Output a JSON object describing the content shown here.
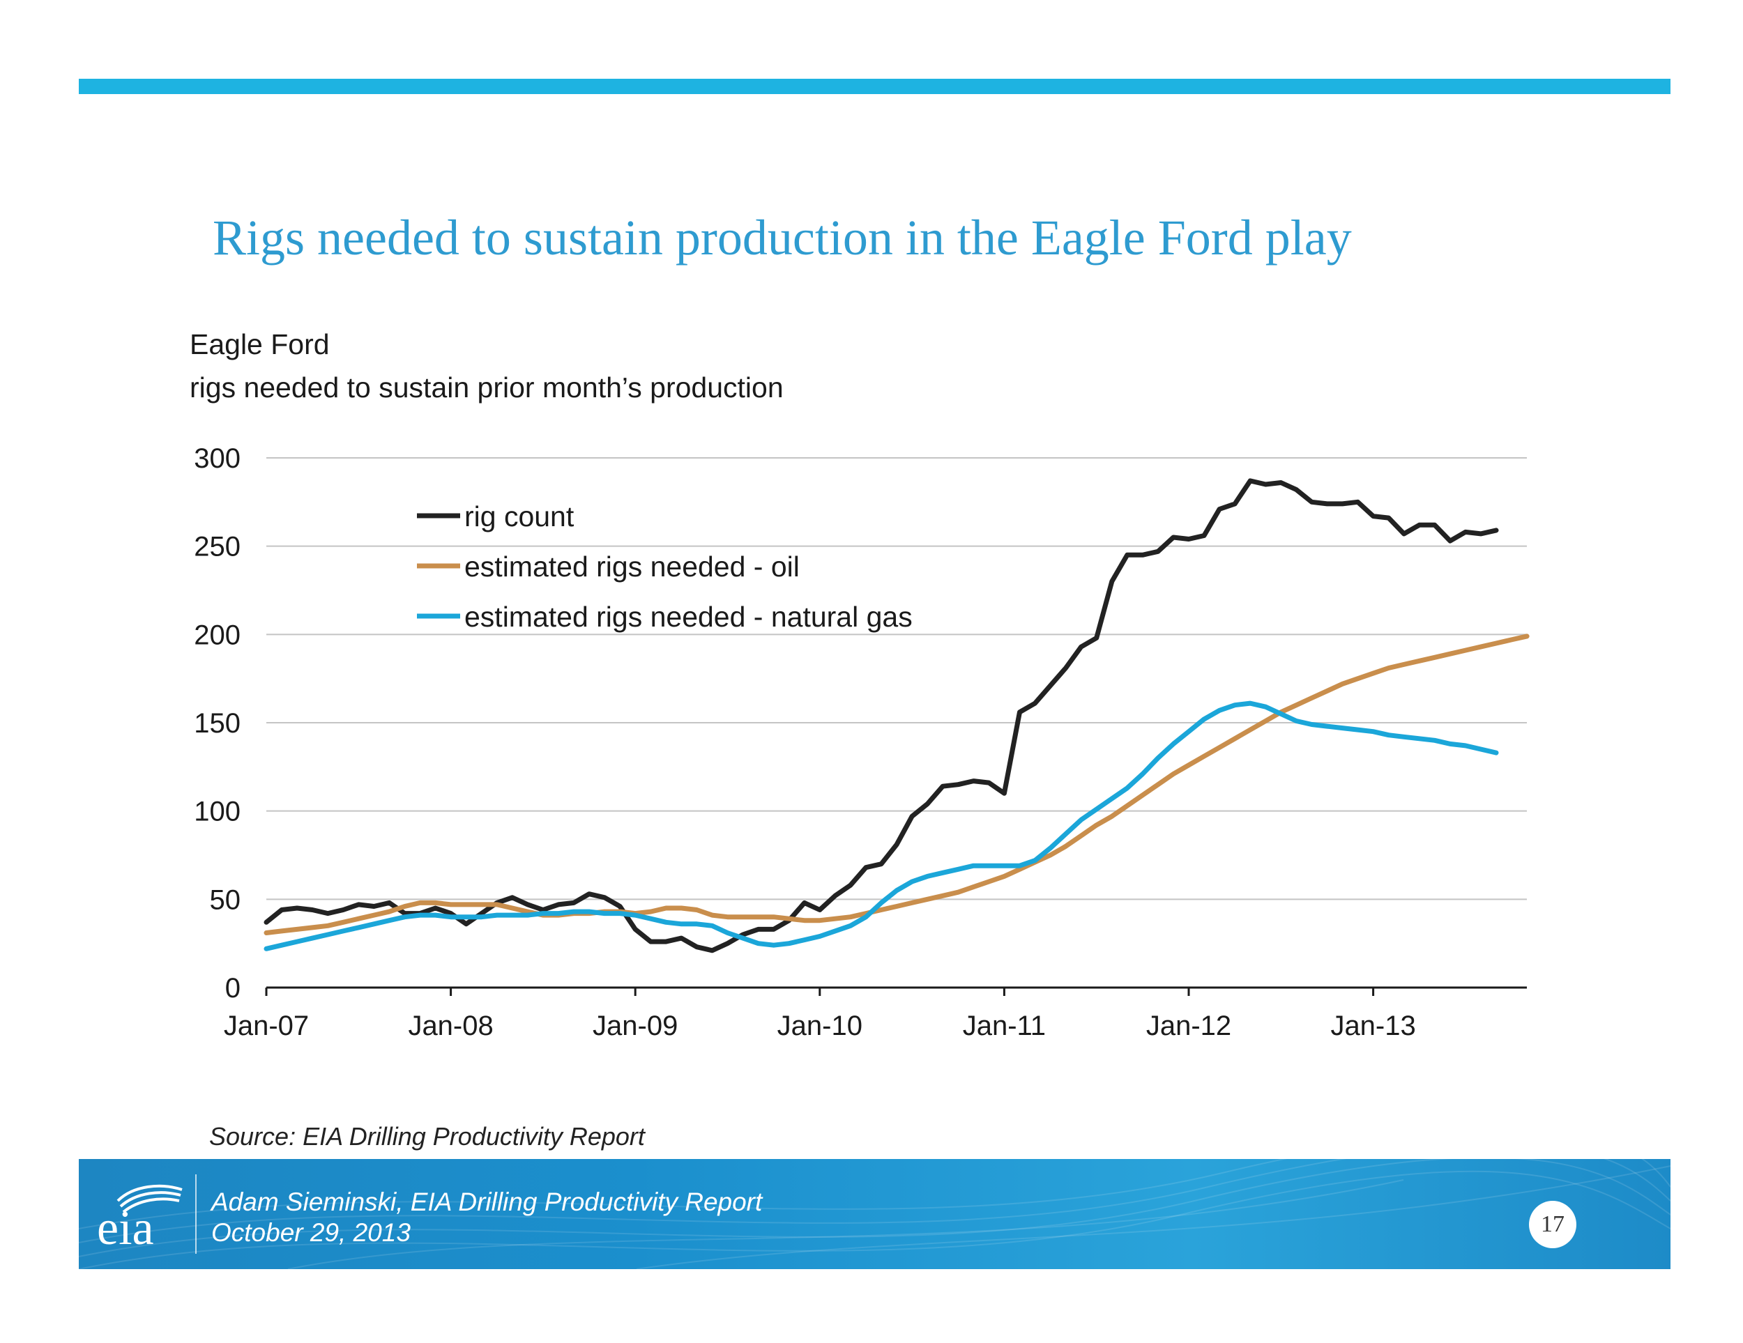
{
  "slide": {
    "title": "Rigs needed to sustain production in the Eagle Ford play",
    "source": "Source:  EIA Drilling Productivity Report",
    "footer_line1": "Adam Sieminski, EIA Drilling Productivity Report",
    "footer_line2": "October 29, 2013",
    "logo_text": "eia",
    "page_number": "17",
    "accent_color": "#1eb3e1",
    "title_color": "#2e9bd0"
  },
  "chart_data": {
    "type": "line",
    "title": "Eagle Ford",
    "subtitle": "rigs needed to sustain prior month’s production",
    "xlabel": "",
    "ylabel": "",
    "ylim": [
      0,
      300
    ],
    "yticks": [
      0,
      50,
      100,
      150,
      200,
      250,
      300
    ],
    "ytick_labels": [
      "0",
      "50",
      "100",
      "150",
      "200",
      "250",
      "300"
    ],
    "x_start": "Jan-07",
    "x_range_months": [
      0,
      82
    ],
    "xtick_months": [
      0,
      12,
      24,
      36,
      48,
      60,
      72
    ],
    "xtick_labels": [
      "Jan-07",
      "Jan-08",
      "Jan-09",
      "Jan-10",
      "Jan-11",
      "Jan-12",
      "Jan-13"
    ],
    "grid": true,
    "legend_position": "top-left",
    "series": [
      {
        "name": "rig count",
        "color": "#222222",
        "values": [
          37,
          44,
          45,
          44,
          42,
          44,
          47,
          46,
          48,
          42,
          42,
          45,
          42,
          36,
          42,
          48,
          51,
          47,
          44,
          47,
          48,
          53,
          51,
          46,
          33,
          26,
          26,
          28,
          23,
          21,
          25,
          30,
          33,
          33,
          38,
          48,
          44,
          52,
          58,
          68,
          70,
          81,
          97,
          104,
          114,
          115,
          117,
          116,
          110,
          156,
          161,
          171,
          181,
          193,
          198,
          230,
          245,
          245,
          247,
          255,
          254,
          256,
          271,
          274,
          287,
          285,
          286,
          282,
          275,
          274,
          274,
          275,
          267,
          266,
          257,
          262,
          262,
          253,
          258,
          257,
          259
        ]
      },
      {
        "name": "estimated rigs needed - oil",
        "color": "#c98e4c",
        "values": [
          31,
          32,
          33,
          34,
          35,
          37,
          39,
          41,
          43,
          46,
          48,
          48,
          47,
          47,
          47,
          47,
          45,
          43,
          41,
          41,
          42,
          42,
          43,
          43,
          42,
          43,
          45,
          45,
          44,
          41,
          40,
          40,
          40,
          40,
          39,
          38,
          38,
          39,
          40,
          42,
          44,
          46,
          48,
          50,
          52,
          54,
          57,
          60,
          63,
          67,
          71,
          75,
          80,
          86,
          92,
          97,
          103,
          109,
          115,
          121,
          126,
          131,
          136,
          141,
          146,
          151,
          156,
          160,
          164,
          168,
          172,
          175,
          178,
          181,
          183,
          185,
          187,
          189,
          191,
          193,
          195,
          197,
          199
        ]
      },
      {
        "name": "estimated rigs needed - natural gas",
        "color": "#1ba6d9",
        "values": [
          22,
          24,
          26,
          28,
          30,
          32,
          34,
          36,
          38,
          40,
          41,
          41,
          40,
          40,
          40,
          41,
          41,
          41,
          42,
          42,
          43,
          43,
          42,
          42,
          41,
          39,
          37,
          36,
          36,
          35,
          31,
          28,
          25,
          24,
          25,
          27,
          29,
          32,
          35,
          40,
          48,
          55,
          60,
          63,
          65,
          67,
          69,
          69,
          69,
          69,
          72,
          79,
          87,
          95,
          101,
          107,
          113,
          121,
          130,
          138,
          145,
          152,
          157,
          160,
          161,
          159,
          155,
          151,
          149,
          148,
          147,
          146,
          145,
          143,
          142,
          141,
          140,
          138,
          137,
          135,
          133
        ]
      }
    ]
  }
}
